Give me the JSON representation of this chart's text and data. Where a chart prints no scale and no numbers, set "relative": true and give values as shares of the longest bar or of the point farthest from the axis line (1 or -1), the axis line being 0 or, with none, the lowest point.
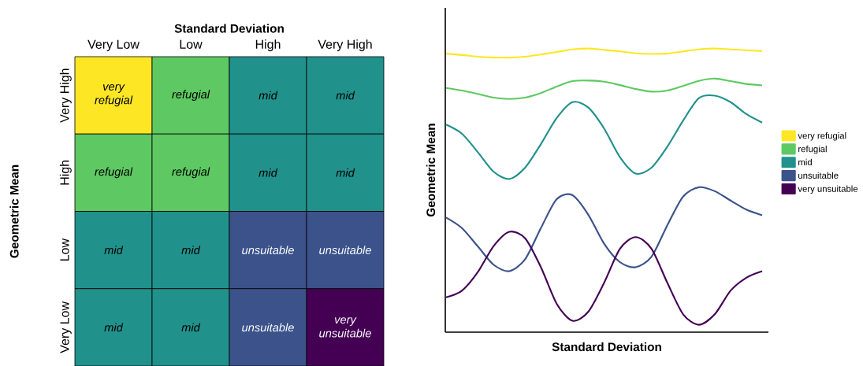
{
  "chart_data": [
    {
      "type": "other",
      "xlabel": "Standard Deviation",
      "ylabel": "Geometric Mean",
      "categories": [
        "Very Low",
        "Low",
        "High",
        "Very High"
      ],
      "y_categories": [
        "Very High",
        "High",
        "Low",
        "Very Low"
      ],
      "colors": [
        [
          "#fde725",
          "#5ec962",
          "#21918c",
          "#21918c"
        ],
        [
          "#5ec962",
          "#5ec962",
          "#21918c",
          "#21918c"
        ],
        [
          "#21918c",
          "#21918c",
          "#3b528b",
          "#3b528b"
        ],
        [
          "#21918c",
          "#21918c",
          "#3b528b",
          "#440154"
        ]
      ],
      "cell_labels": [
        [
          "very refugial",
          "refugial",
          "mid",
          "mid"
        ],
        [
          "refugial",
          "refugial",
          "mid",
          "mid"
        ],
        [
          "mid",
          "mid",
          "unsuitable",
          "unsuitable"
        ],
        [
          "mid",
          "mid",
          "unsuitable",
          "very unsuitable"
        ]
      ]
    },
    {
      "type": "line",
      "relative": true,
      "xlabel": "Standard Deviation",
      "ylabel": "Geometric Mean",
      "legend": "right",
      "categories": [
        null,
        null,
        null,
        null,
        null,
        null,
        null,
        null,
        null,
        null,
        null,
        null,
        null,
        null,
        null,
        null,
        null,
        null,
        null,
        null,
        null
      ],
      "series": [
        {
          "name": "very refugial",
          "color": "#fde725",
          "values": [
            0.982,
            0.977,
            0.971,
            0.968,
            0.968,
            0.971,
            0.979,
            0.988,
            0.997,
            1,
            0.995,
            0.99,
            0.983,
            0.981,
            0.982,
            0.99,
            0.997,
            1,
            0.997,
            0.994,
            0.991
          ]
        },
        {
          "name": "refugial",
          "color": "#5ec962",
          "values": [
            0.861,
            0.852,
            0.84,
            0.827,
            0.822,
            0.827,
            0.843,
            0.866,
            0.885,
            0.887,
            0.883,
            0.871,
            0.857,
            0.848,
            0.852,
            0.868,
            0.886,
            0.894,
            0.885,
            0.875,
            0.87
          ]
        },
        {
          "name": "mid",
          "color": "#21918c",
          "values": [
            0.732,
            0.7,
            0.635,
            0.566,
            0.54,
            0.58,
            0.663,
            0.755,
            0.811,
            0.792,
            0.718,
            0.617,
            0.559,
            0.58,
            0.654,
            0.746,
            0.825,
            0.834,
            0.811,
            0.769,
            0.739
          ]
        },
        {
          "name": "unsuitable",
          "color": "#3b528b",
          "values": [
            0.404,
            0.367,
            0.303,
            0.238,
            0.215,
            0.257,
            0.367,
            0.469,
            0.483,
            0.414,
            0.312,
            0.247,
            0.229,
            0.266,
            0.377,
            0.478,
            0.511,
            0.497,
            0.464,
            0.432,
            0.412
          ]
        },
        {
          "name": "very unsuitable",
          "color": "#440154",
          "values": [
            0.123,
            0.146,
            0.211,
            0.303,
            0.354,
            0.331,
            0.229,
            0.1,
            0.04,
            0.072,
            0.174,
            0.294,
            0.335,
            0.294,
            0.174,
            0.063,
            0.026,
            0.063,
            0.146,
            0.192,
            0.215
          ]
        }
      ]
    }
  ]
}
